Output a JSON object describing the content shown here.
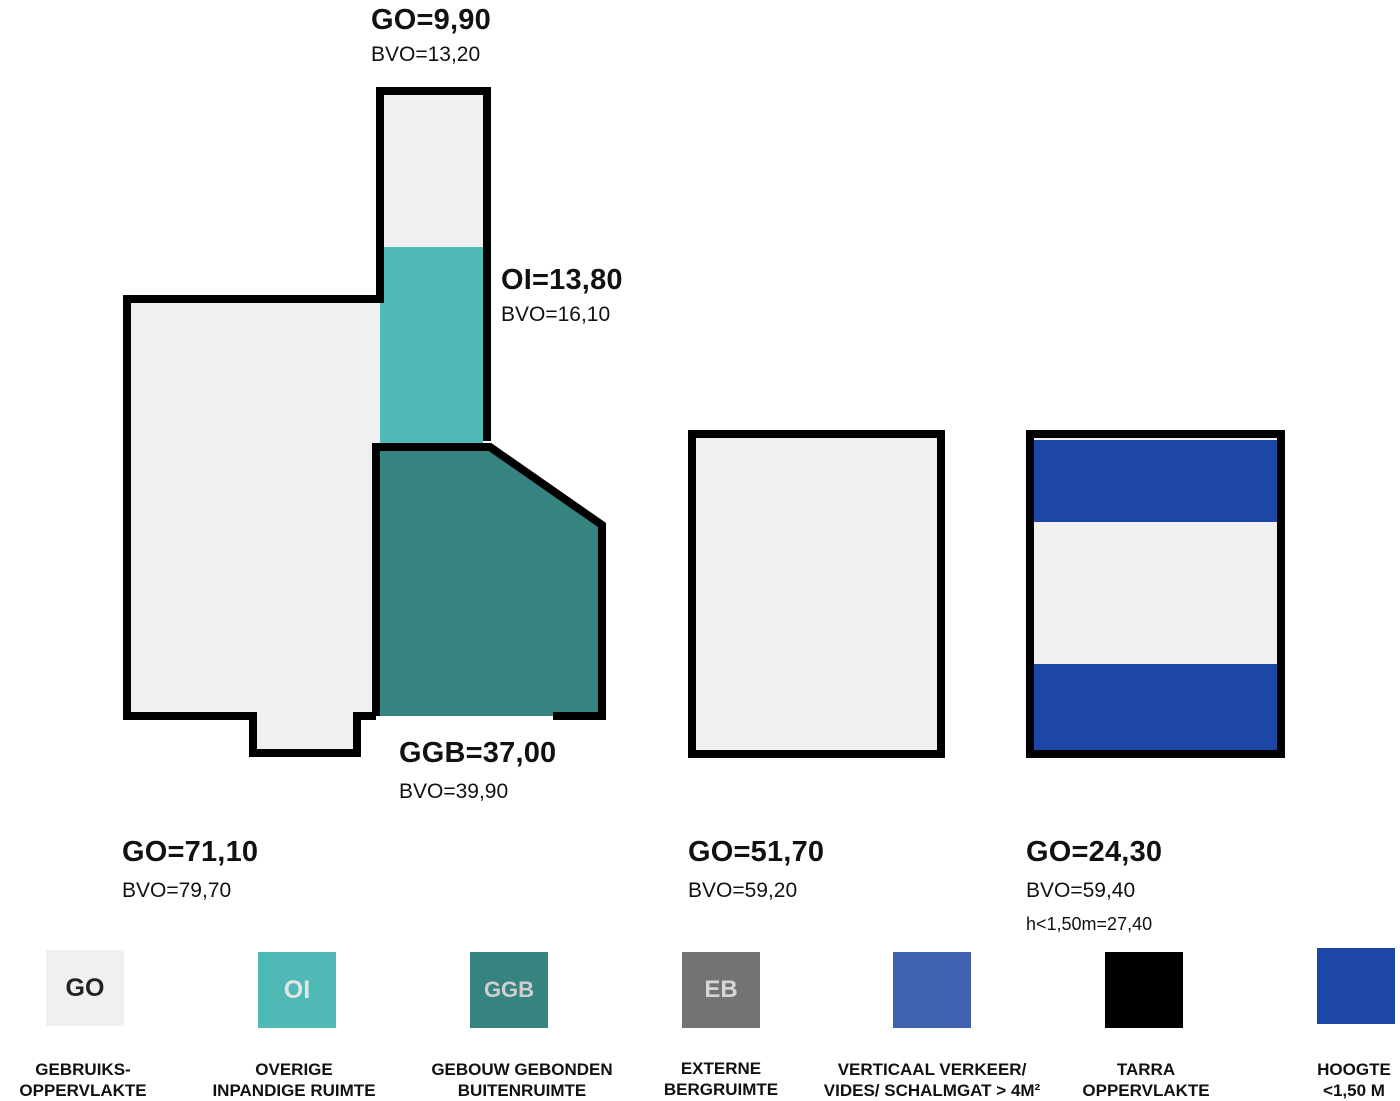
{
  "colors": {
    "go": "#f0f0f0",
    "oi": "#4fbab5",
    "ggb": "#368480",
    "eb": "#737373",
    "vv": "#4060b0",
    "tarra": "#000000",
    "hoogte": "#1d47a6",
    "outline": "#000000"
  },
  "labels": {
    "top": {
      "go": "GO=9,90",
      "bvo": "BVO=13,20"
    },
    "oi": {
      "go": "OI=13,80",
      "bvo": "BVO=16,10"
    },
    "ggb": {
      "go": "GGB=37,00",
      "bvo": "BVO=39,90"
    },
    "building1": {
      "go": "GO=71,10",
      "bvo": "BVO=79,70"
    },
    "building2": {
      "go": "GO=51,70",
      "bvo": "BVO=59,20"
    },
    "building3": {
      "go": "GO=24,30",
      "bvo": "BVO=59,40",
      "low": "h<1,50m=27,40"
    }
  },
  "legend": [
    {
      "abbr": "GO",
      "line1": "GEBRUIKS-",
      "line2": "OPPERVLAKTE",
      "color": "#f0f0f0"
    },
    {
      "abbr": "OI",
      "line1": "OVERIGE",
      "line2": "INPANDIGE RUIMTE",
      "color": "#4fbab5"
    },
    {
      "abbr": "GGB",
      "line1": "GEBOUW GEBONDEN",
      "line2": "BUITENRUIMTE",
      "color": "#368480"
    },
    {
      "abbr": "EB",
      "line1": "EXTERNE",
      "line2": "BERGRUIMTE",
      "color": "#737373"
    },
    {
      "abbr": "",
      "line1": "VERTICAAL VERKEER/",
      "line2": "VIDES/ SCHALMGAT > 4M²",
      "color": "#4060b0"
    },
    {
      "abbr": "",
      "line1": "TARRA",
      "line2": "OPPERVLAKTE",
      "color": "#000000"
    },
    {
      "abbr": "",
      "line1": "HOOGTE",
      "line2": "<1,50 M",
      "color": "#1d47a6"
    }
  ]
}
